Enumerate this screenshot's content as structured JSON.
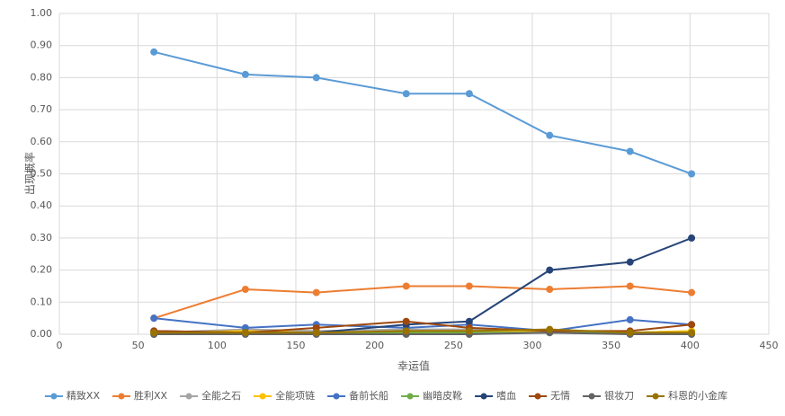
{
  "chart_data": {
    "type": "line",
    "xlabel": "幸运值",
    "ylabel": "出现概率",
    "x": [
      60,
      118,
      163,
      220,
      260,
      311,
      362,
      401
    ],
    "xlim": [
      0,
      450
    ],
    "xticks": [
      0,
      50,
      100,
      150,
      200,
      250,
      300,
      350,
      400,
      450
    ],
    "ylim": [
      0,
      1
    ],
    "yticks": [
      {
        "value": 0,
        "label": "0.00"
      },
      {
        "value": 0.1,
        "label": "0.10"
      },
      {
        "value": 0.2,
        "label": "0.20"
      },
      {
        "value": 0.3,
        "label": "0.30"
      },
      {
        "value": 0.4,
        "label": "0.40"
      },
      {
        "value": 0.5,
        "label": "0.50"
      },
      {
        "value": 0.6,
        "label": "0.60"
      },
      {
        "value": 0.7,
        "label": "0.70"
      },
      {
        "value": 0.8,
        "label": "0.80"
      },
      {
        "value": 0.9,
        "label": "0.90"
      },
      {
        "value": 1,
        "label": "1.00"
      }
    ],
    "grid": true,
    "legend": "bottom",
    "series": [
      {
        "name": "精致XX",
        "color": "#5b9bd5",
        "values": [
          0.88,
          0.81,
          0.8,
          0.75,
          0.75,
          0.62,
          0.57,
          0.5
        ]
      },
      {
        "name": "胜利XX",
        "color": "#ed7d31",
        "values": [
          0.05,
          0.14,
          0.13,
          0.15,
          0.15,
          0.14,
          0.15,
          0.13
        ]
      },
      {
        "name": "全能之石",
        "color": "#a5a5a5",
        "values": [
          0.005,
          0.015,
          0.01,
          0.015,
          0.015,
          0.01,
          0.005,
          0.01
        ]
      },
      {
        "name": "全能项链",
        "color": "#ffc000",
        "values": [
          0.005,
          0.01,
          0.005,
          0.01,
          0.01,
          0.01,
          0.005,
          0.01
        ]
      },
      {
        "name": "备前长船",
        "color": "#4472c4",
        "values": [
          0.05,
          0.02,
          0.03,
          0.02,
          0.03,
          0.01,
          0.045,
          0.03
        ]
      },
      {
        "name": "幽暗皮靴",
        "color": "#70ad47",
        "values": [
          0,
          0.005,
          0.005,
          0.005,
          0.005,
          0.005,
          0.005,
          0.005
        ]
      },
      {
        "name": "嗜血",
        "color": "#264478",
        "values": [
          0.01,
          0.005,
          0.005,
          0.03,
          0.04,
          0.2,
          0.225,
          0.3
        ]
      },
      {
        "name": "无情",
        "color": "#9e480e",
        "values": [
          0.01,
          0.005,
          0.02,
          0.04,
          0.02,
          0.01,
          0.01,
          0.03
        ]
      },
      {
        "name": "银妆刀",
        "color": "#636363",
        "values": [
          0,
          0,
          0,
          0,
          0,
          0.005,
          0,
          0
        ]
      },
      {
        "name": "科恩的小金库",
        "color": "#997300",
        "values": [
          0.005,
          0.005,
          0.005,
          0.01,
          0.01,
          0.015,
          0.005,
          0.005
        ]
      }
    ]
  }
}
